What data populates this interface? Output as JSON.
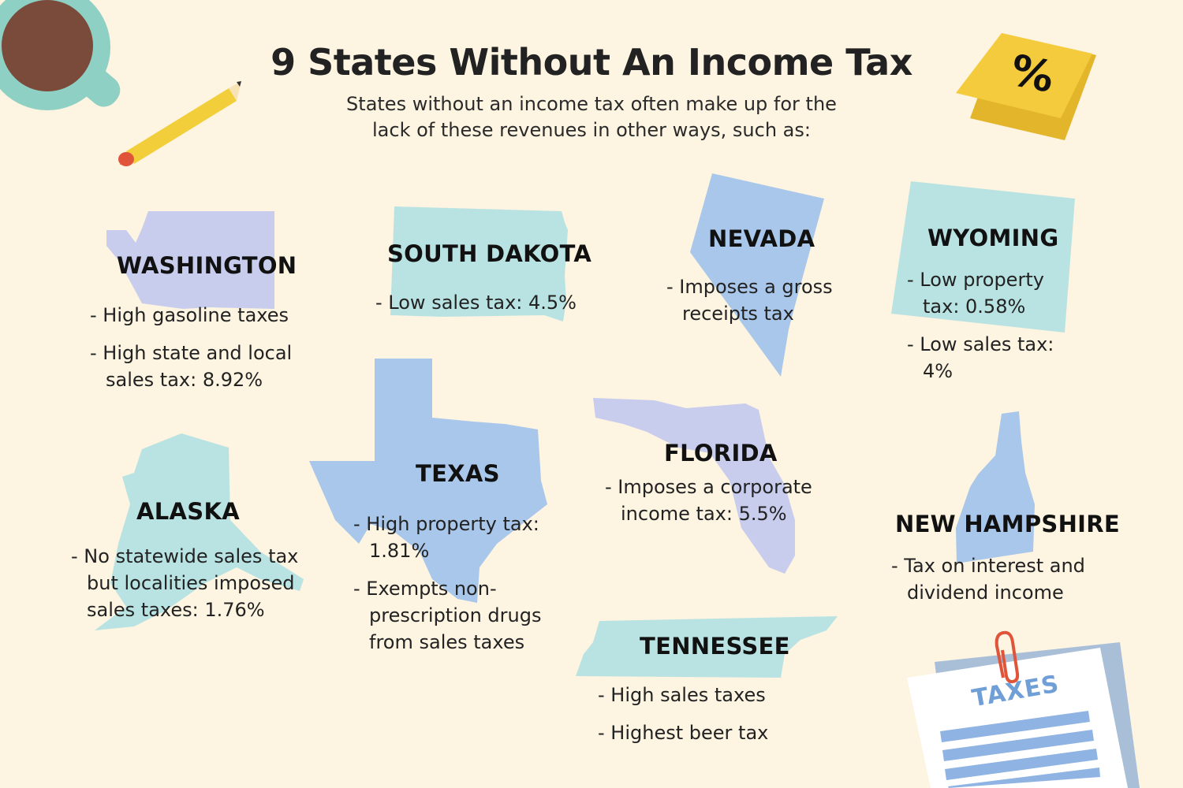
{
  "title": "9 States Without An Income Tax",
  "subtitle_lines": [
    "States without an income tax often make up for the",
    "lack of these revenues in other ways, such as:"
  ],
  "colors": {
    "background": "#fdf4e1",
    "lavender": "#c8cdee",
    "teal": "#b9e3e2",
    "blue": "#a8c7ea",
    "sticky_note": "#f4cb3c",
    "pencil": "#f2cf3a",
    "mug": "#8fd0c4",
    "coffee": "#7a4a3a"
  },
  "decorations": {
    "coffee_mug_icon": "coffee-mug",
    "pencil_icon": "pencil",
    "sticky_note_symbol": "%",
    "taxes_document_label": "TAXES",
    "paperclip_icon": "paperclip"
  },
  "states": [
    {
      "name": "WASHINGTON",
      "facts": [
        "High gasoline taxes",
        "High state and local sales tax: 8.92%"
      ]
    },
    {
      "name": "SOUTH DAKOTA",
      "facts": [
        "Low sales tax: 4.5%"
      ]
    },
    {
      "name": "NEVADA",
      "facts": [
        "Imposes a gross receipts tax"
      ]
    },
    {
      "name": "WYOMING",
      "facts": [
        "Low property tax: 0.58%",
        "Low sales tax: 4%"
      ]
    },
    {
      "name": "ALASKA",
      "facts": [
        "No statewide sales tax but localities imposed sales taxes: 1.76%"
      ]
    },
    {
      "name": "TEXAS",
      "facts": [
        "High property tax: 1.81%",
        "Exempts non-prescription drugs from sales taxes"
      ]
    },
    {
      "name": "FLORIDA",
      "facts": [
        "Imposes a corporate income tax: 5.5%"
      ]
    },
    {
      "name": "NEW HAMPSHIRE",
      "facts": [
        "Tax on interest and dividend income"
      ]
    },
    {
      "name": "TENNESSEE",
      "facts": [
        "High sales taxes",
        "Highest beer tax"
      ]
    }
  ]
}
